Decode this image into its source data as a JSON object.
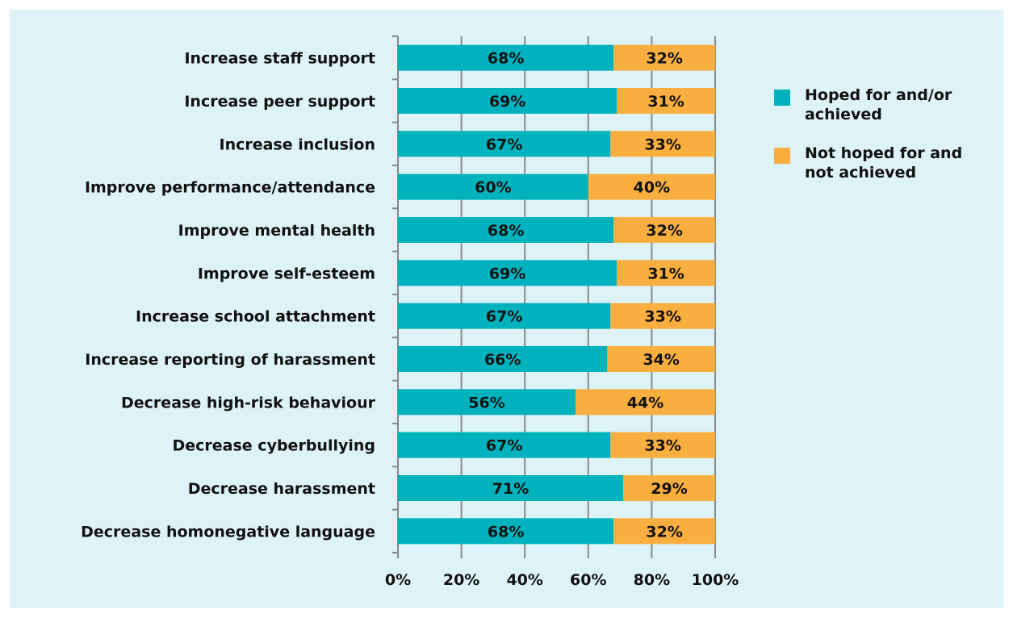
{
  "colors": {
    "panel_bg": "#def3f8",
    "hoped": "#00b2bd",
    "not_hoped": "#f9ae40",
    "axis": "#888888"
  },
  "chart_data": {
    "type": "bar",
    "orientation": "horizontal",
    "stacked": true,
    "categories": [
      "Increase staff support",
      "Increase peer support",
      "Increase inclusion",
      "Improve performance/attendance",
      "Improve mental health",
      "Improve self-esteem",
      "Increase school attachment",
      "Increase reporting of harassment",
      "Decrease high-risk behaviour",
      "Decrease cyberbullying",
      "Decrease harassment",
      "Decrease homonegative language"
    ],
    "series": [
      {
        "name": "Hoped for and/or achieved",
        "color": "#00b2bd",
        "values": [
          68,
          69,
          67,
          60,
          68,
          69,
          67,
          66,
          56,
          67,
          71,
          68
        ]
      },
      {
        "name": "Not hoped for and not achieved",
        "color": "#f9ae40",
        "values": [
          32,
          31,
          33,
          40,
          32,
          31,
          33,
          34,
          44,
          33,
          29,
          32
        ]
      }
    ],
    "value_suffix": "%",
    "xlim": [
      0,
      100
    ],
    "xticks": [
      "0%",
      "20%",
      "40%",
      "60%",
      "80%",
      "100%"
    ],
    "grid": true,
    "legend_position": "right"
  },
  "legend": {
    "items": [
      {
        "label_line1": "Hoped for and/or",
        "label_line2": "achieved",
        "color": "#00b2bd"
      },
      {
        "label_line1": "Not hoped for and",
        "label_line2": "not achieved",
        "color": "#f9ae40"
      }
    ]
  }
}
